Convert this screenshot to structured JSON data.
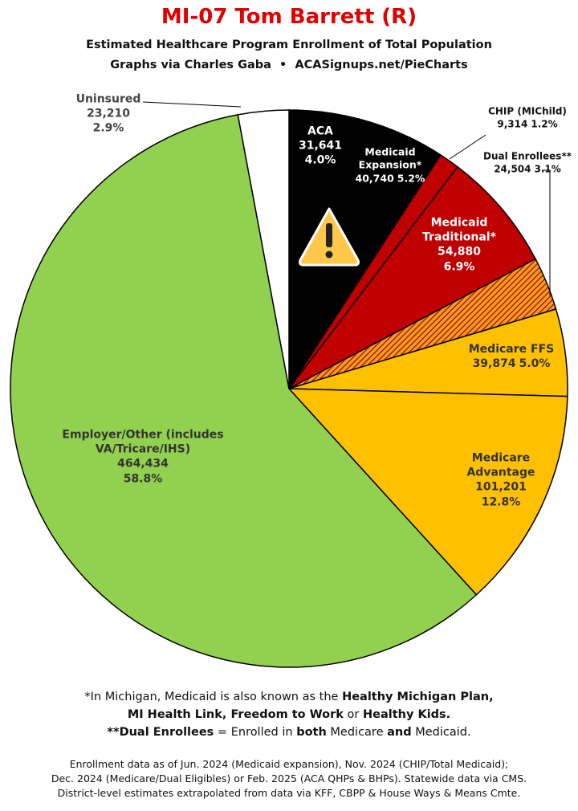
{
  "chart_data": {
    "type": "pie",
    "title": "MI-07 Tom Barrett (R)",
    "subtitle": [
      "Estimated Healthcare Program Enrollment of Total Population",
      "Graphs via Charles Gaba  •  ACASignups.net/PieCharts"
    ],
    "categories": [
      "ACA",
      "Medicaid Expansion*",
      "CHIP (MIChild)",
      "Medicaid Traditional*",
      "Dual Enrollees**",
      "Medicare FFS",
      "Medicare Advantage",
      "Employer/Other (includes VA/Tricare/IHS)",
      "Uninsured"
    ],
    "values": [
      31641,
      40740,
      9314,
      54880,
      24504,
      39874,
      101201,
      464434,
      23210
    ],
    "value_labels": [
      "31,641",
      "40,740",
      "9,314",
      "54,880",
      "24,504",
      "39,874",
      "101,201",
      "464,434",
      "23,210"
    ],
    "percent_labels": [
      "4.0%",
      "5.2%",
      "1.2%",
      "6.9%",
      "3.1%",
      "5.0%",
      "12.8%",
      "58.8%",
      "2.9%"
    ],
    "colors": [
      "#000000",
      "#000000",
      "#c00000",
      "#c00000",
      "hatch",
      "#ffc000",
      "#ffc000",
      "#92d050",
      "#ffffff"
    ],
    "notes": [
      [
        {
          "text": "*In Michigan, Medicaid is also known as the ",
          "bold": false
        },
        {
          "text": "Healthy Michigan Plan,",
          "bold": true
        }
      ],
      [
        {
          "text": "MI Health Link, Freedom to Work",
          "bold": true
        },
        {
          "text": " or ",
          "bold": false
        },
        {
          "text": "Healthy Kids.",
          "bold": true
        }
      ],
      [
        {
          "text": "**Dual Enrollees",
          "bold": true
        },
        {
          "text": " = Enrolled in ",
          "bold": false
        },
        {
          "text": "both",
          "bold": true
        },
        {
          "text": " Medicare ",
          "bold": false
        },
        {
          "text": "and",
          "bold": true
        },
        {
          "text": " Medicaid.",
          "bold": false
        }
      ]
    ],
    "sources": [
      "Enrollment data as of Jun. 2024 (Medicaid expansion), Nov. 2024 (CHIP/Total Medicaid);",
      "Dec. 2024 (Medicare/Dual Eligibles) or Feb. 2025 (ACA QHPs & BHPs). Statewide data via CMS.",
      "District-level estimates extrapolated from data via KFF, CBPP & House Ways & Means Cmte."
    ]
  }
}
